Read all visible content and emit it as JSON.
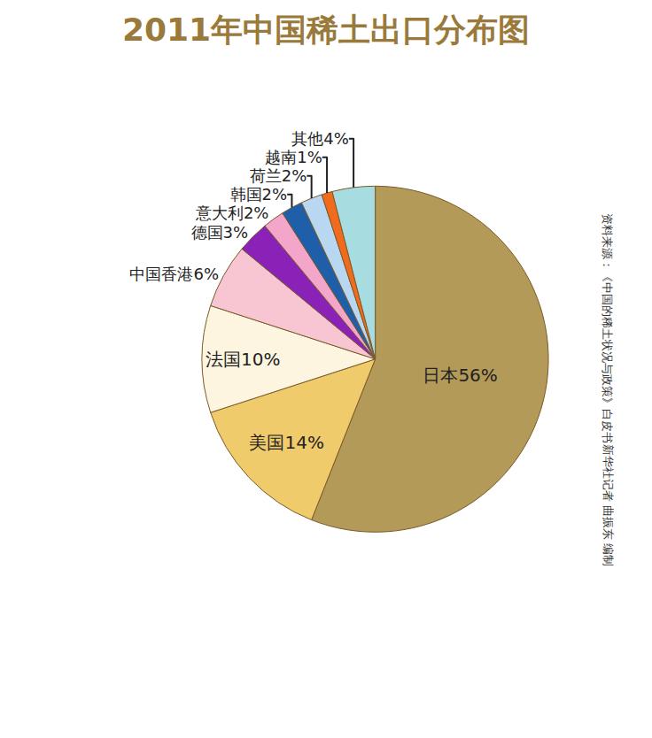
{
  "chart_data": {
    "type": "pie",
    "title": "2011年中国稀土出口分布图",
    "categories": [
      "日本",
      "美国",
      "法国",
      "中国香港",
      "德国",
      "意大利",
      "韩国",
      "荷兰",
      "越南",
      "其他"
    ],
    "values": [
      56,
      14,
      10,
      6,
      3,
      2,
      2,
      2,
      1,
      4
    ],
    "value_labels": [
      "日本56%",
      "美国14%",
      "法国10%",
      "中国香港6%",
      "德国3%",
      "意大利2%",
      "韩国2%",
      "荷兰2%",
      "越南1%",
      "其他4%"
    ],
    "colors": [
      "#b39a58",
      "#efcb6c",
      "#fdf5df",
      "#f8c6d3",
      "#8b22b8",
      "#f3a6c9",
      "#1f5ea8",
      "#b9d7f0",
      "#f06b1d",
      "#a7dde1"
    ],
    "data_labels": true,
    "legend": false,
    "annotations": [
      "资料来源：《中国的稀土状况与政策》白皮书",
      "新华社记者 曲振东 编制"
    ]
  }
}
